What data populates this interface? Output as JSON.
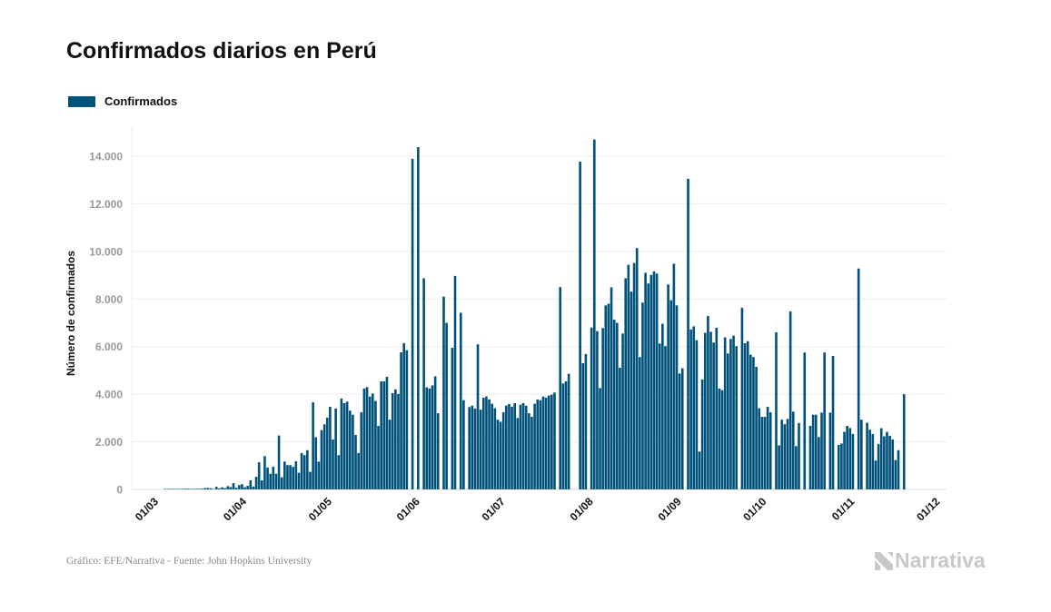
{
  "title": "Confirmados diarios en Perú",
  "footer": "Gráfico: EFE/Narrativa - Fuente: John Hopkins University",
  "logo_text": "Narrativa",
  "colors": {
    "bar": "#01527a",
    "grid": "#ececec",
    "tick_text": "#999999"
  },
  "chart_data": {
    "type": "bar",
    "title": "Confirmados diarios en Perú",
    "ylabel": "Número de confirmados",
    "xlabel": "",
    "ylim": [
      0,
      14500
    ],
    "grid": true,
    "legend_position": "top-left",
    "legend": [
      "Confirmados"
    ],
    "y_ticks": [
      0,
      2000,
      4000,
      6000,
      8000,
      10000,
      12000,
      14000
    ],
    "y_tick_labels": [
      "0",
      "2.000",
      "4.000",
      "6.000",
      "8.000",
      "10.000",
      "12.000",
      "14.000"
    ],
    "x_ticks": [
      "01/03",
      "01/04",
      "01/05",
      "01/06",
      "01/07",
      "01/08",
      "01/09",
      "01/10",
      "01/11",
      "01/12"
    ],
    "x_range": [
      "01/03",
      "01/12"
    ],
    "series": [
      {
        "name": "Confirmados",
        "start": "01/03",
        "values": [
          0,
          0,
          0,
          0,
          0,
          1,
          5,
          2,
          4,
          2,
          11,
          10,
          31,
          28,
          15,
          11,
          29,
          26,
          33,
          55,
          65,
          47,
          21,
          111,
          45,
          87,
          55,
          138,
          100,
          264,
          69,
          181,
          220,
          92,
          150,
          380,
          120,
          530,
          1140,
          380,
          1400,
          920,
          660,
          950,
          660,
          2265,
          510,
          1170,
          1020,
          1020,
          950,
          1180,
          700,
          1530,
          1440,
          1650,
          740,
          3660,
          2190,
          1170,
          2490,
          2735,
          3015,
          3470,
          2100,
          3400,
          1440,
          3820,
          3625,
          3690,
          3310,
          3140,
          2290,
          1530,
          3240,
          4240,
          4300,
          3900,
          4030,
          3715,
          2670,
          4540,
          4540,
          4730,
          2930,
          4045,
          4200,
          4010,
          5760,
          6145,
          5850,
          null,
          13890,
          null,
          14380,
          null,
          8870,
          4290,
          4240,
          4370,
          4750,
          3200,
          null,
          8100,
          7000,
          null,
          5950,
          8970,
          null,
          7420,
          3750,
          null,
          3460,
          3520,
          3400,
          6095,
          3350,
          3855,
          3905,
          3780,
          3600,
          3410,
          2930,
          2840,
          3240,
          3520,
          3590,
          3470,
          3625,
          3000,
          3560,
          3625,
          3520,
          3200,
          3050,
          3600,
          3780,
          3750,
          3905,
          3855,
          3945,
          3980,
          4070,
          null,
          8500,
          4450,
          4540,
          4860,
          null,
          null,
          null,
          13770,
          5300,
          5690,
          null,
          6800,
          14700,
          6650,
          4260,
          6780,
          7730,
          7800,
          8490,
          7130,
          7000,
          5110,
          6550,
          8870,
          9440,
          8310,
          9510,
          10140,
          5560,
          7850,
          9100,
          8650,
          9010,
          9160,
          9070,
          6130,
          6960,
          6020,
          8610,
          7950,
          9480,
          7730,
          4870,
          5090,
          null,
          13050,
          6720,
          6850,
          6270,
          1590,
          4620,
          6580,
          7290,
          6620,
          6170,
          6790,
          4240,
          4170,
          6390,
          5710,
          6320,
          6460,
          6020,
          null,
          7630,
          6140,
          6230,
          5660,
          5560,
          5150,
          3410,
          3050,
          3050,
          3470,
          3240,
          null,
          6600,
          1850,
          2930,
          2740,
          2960,
          7480,
          3270,
          1820,
          2790,
          null,
          5750,
          null,
          2670,
          3140,
          3140,
          2200,
          3230,
          5750,
          null,
          3230,
          5610,
          null,
          1870,
          1930,
          2420,
          2670,
          2580,
          2330,
          null,
          9280,
          2930,
          null,
          2800,
          2510,
          2330,
          1210,
          1910,
          2570,
          2230,
          2420,
          2250,
          2100,
          1230,
          1650,
          null,
          4000
        ]
      }
    ]
  }
}
